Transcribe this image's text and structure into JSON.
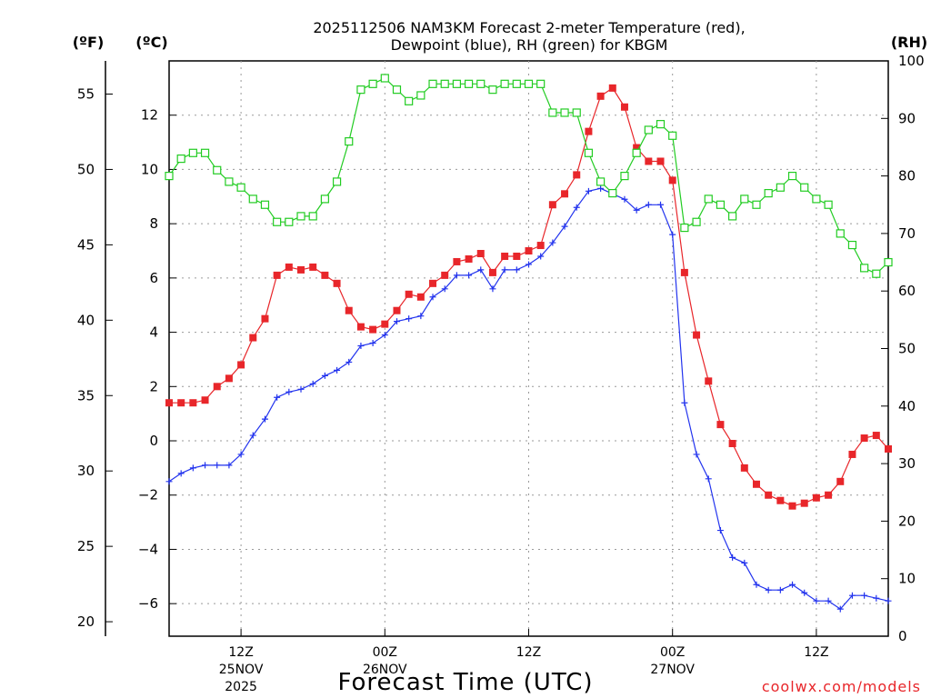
{
  "chart_data": {
    "type": "line",
    "title_line1": "2025112506 NAM3KM Forecast 2-meter Temperature (red),",
    "title_line2": "Dewpoint (blue), RH (green) for KBGM",
    "xlabel": "Forecast Time (UTC)",
    "credit": "coolwx.com/models",
    "unit_f": "(ºF)",
    "unit_c": "(ºC)",
    "unit_rh": "(RH)",
    "x_start_hour": 6,
    "x_end_hour": 66,
    "y_c_range": [
      -7.2,
      14.0
    ],
    "y_rh_range": [
      0,
      100
    ],
    "x_ticks": [
      {
        "hour": 12,
        "label1": "12Z",
        "label2": "25NOV",
        "label3": "2025"
      },
      {
        "hour": 24,
        "label1": "00Z",
        "label2": "26NOV",
        "label3": ""
      },
      {
        "hour": 36,
        "label1": "12Z",
        "label2": "",
        "label3": ""
      },
      {
        "hour": 48,
        "label1": "00Z",
        "label2": "27NOV",
        "label3": ""
      },
      {
        "hour": 60,
        "label1": "12Z",
        "label2": "",
        "label3": ""
      }
    ],
    "y_ticks_c": [
      "12",
      "10",
      "8",
      "6",
      "4",
      "2",
      "0",
      "−2",
      "−4",
      "−6"
    ],
    "y_ticks_c_values": [
      12,
      10,
      8,
      6,
      4,
      2,
      0,
      -2,
      -4,
      -6
    ],
    "y_ticks_f": [
      "55",
      "50",
      "45",
      "40",
      "35",
      "30",
      "25",
      "20"
    ],
    "y_ticks_f_values": [
      55,
      50,
      45,
      40,
      35,
      30,
      25,
      20
    ],
    "y_ticks_rh": [
      "100",
      "90",
      "80",
      "70",
      "60",
      "50",
      "40",
      "30",
      "20",
      "10",
      "0"
    ],
    "y_ticks_rh_values": [
      100,
      90,
      80,
      70,
      60,
      50,
      40,
      30,
      20,
      10,
      0
    ],
    "hours": [
      6,
      7,
      8,
      9,
      10,
      11,
      12,
      13,
      14,
      15,
      16,
      17,
      18,
      19,
      20,
      21,
      22,
      23,
      24,
      25,
      26,
      27,
      28,
      29,
      30,
      31,
      32,
      33,
      34,
      35,
      36,
      37,
      38,
      39,
      40,
      41,
      42,
      43,
      44,
      45,
      46,
      47,
      48,
      49,
      50,
      51,
      52,
      53,
      54,
      55,
      56,
      57,
      58,
      59,
      60,
      61,
      62,
      63,
      64,
      65,
      66
    ],
    "series": [
      {
        "name": "Temperature",
        "color": "#e8262a",
        "marker": "filled-square",
        "values": [
          1.4,
          1.4,
          1.4,
          1.5,
          2.0,
          2.3,
          2.8,
          3.8,
          4.5,
          6.1,
          6.4,
          6.3,
          6.4,
          6.1,
          5.8,
          4.8,
          4.2,
          4.1,
          4.3,
          4.8,
          5.4,
          5.3,
          5.8,
          6.1,
          6.6,
          6.7,
          6.9,
          6.2,
          6.8,
          6.8,
          7.0,
          7.2,
          8.7,
          9.1,
          9.8,
          11.4,
          12.7,
          13.0,
          12.3,
          10.8,
          10.3,
          10.3,
          9.6,
          6.2,
          3.9,
          2.2,
          0.6,
          -0.1,
          -1.0,
          -1.6,
          -2.0,
          -2.2,
          -2.4,
          -2.3,
          -2.1,
          -2.0,
          -1.5,
          -0.5,
          0.1,
          0.2,
          -0.3
        ]
      },
      {
        "name": "Dewpoint",
        "color": "#2233ee",
        "marker": "plus",
        "values": [
          -1.5,
          -1.2,
          -1.0,
          -0.9,
          -0.9,
          -0.9,
          -0.5,
          0.2,
          0.8,
          1.6,
          1.8,
          1.9,
          2.1,
          2.4,
          2.6,
          2.9,
          3.5,
          3.6,
          3.9,
          4.4,
          4.5,
          4.6,
          5.3,
          5.6,
          6.1,
          6.1,
          6.3,
          5.6,
          6.3,
          6.3,
          6.5,
          6.8,
          7.3,
          7.9,
          8.6,
          9.2,
          9.3,
          9.1,
          8.9,
          8.5,
          8.7,
          8.7,
          7.6,
          1.4,
          -0.5,
          -1.4,
          -3.3,
          -4.3,
          -4.5,
          -5.3,
          -5.5,
          -5.5,
          -5.3,
          -5.6,
          -5.9,
          -5.9,
          -6.2,
          -5.7,
          -5.7,
          -5.8,
          -5.9
        ]
      },
      {
        "name": "RH",
        "color": "#22cc22",
        "marker": "open-square",
        "axis": "rh",
        "values": [
          80,
          83,
          84,
          84,
          81,
          79,
          78,
          76,
          75,
          72,
          72,
          73,
          73,
          76,
          79,
          86,
          95,
          96,
          97,
          95,
          93,
          94,
          96,
          96,
          96,
          96,
          96,
          95,
          96,
          96,
          96,
          96,
          91,
          91,
          91,
          84,
          79,
          77,
          80,
          84,
          88,
          89,
          87,
          71,
          72,
          76,
          75,
          73,
          76,
          75,
          77,
          78,
          80,
          78,
          76,
          75,
          70,
          68,
          64,
          63,
          65
        ]
      }
    ]
  }
}
